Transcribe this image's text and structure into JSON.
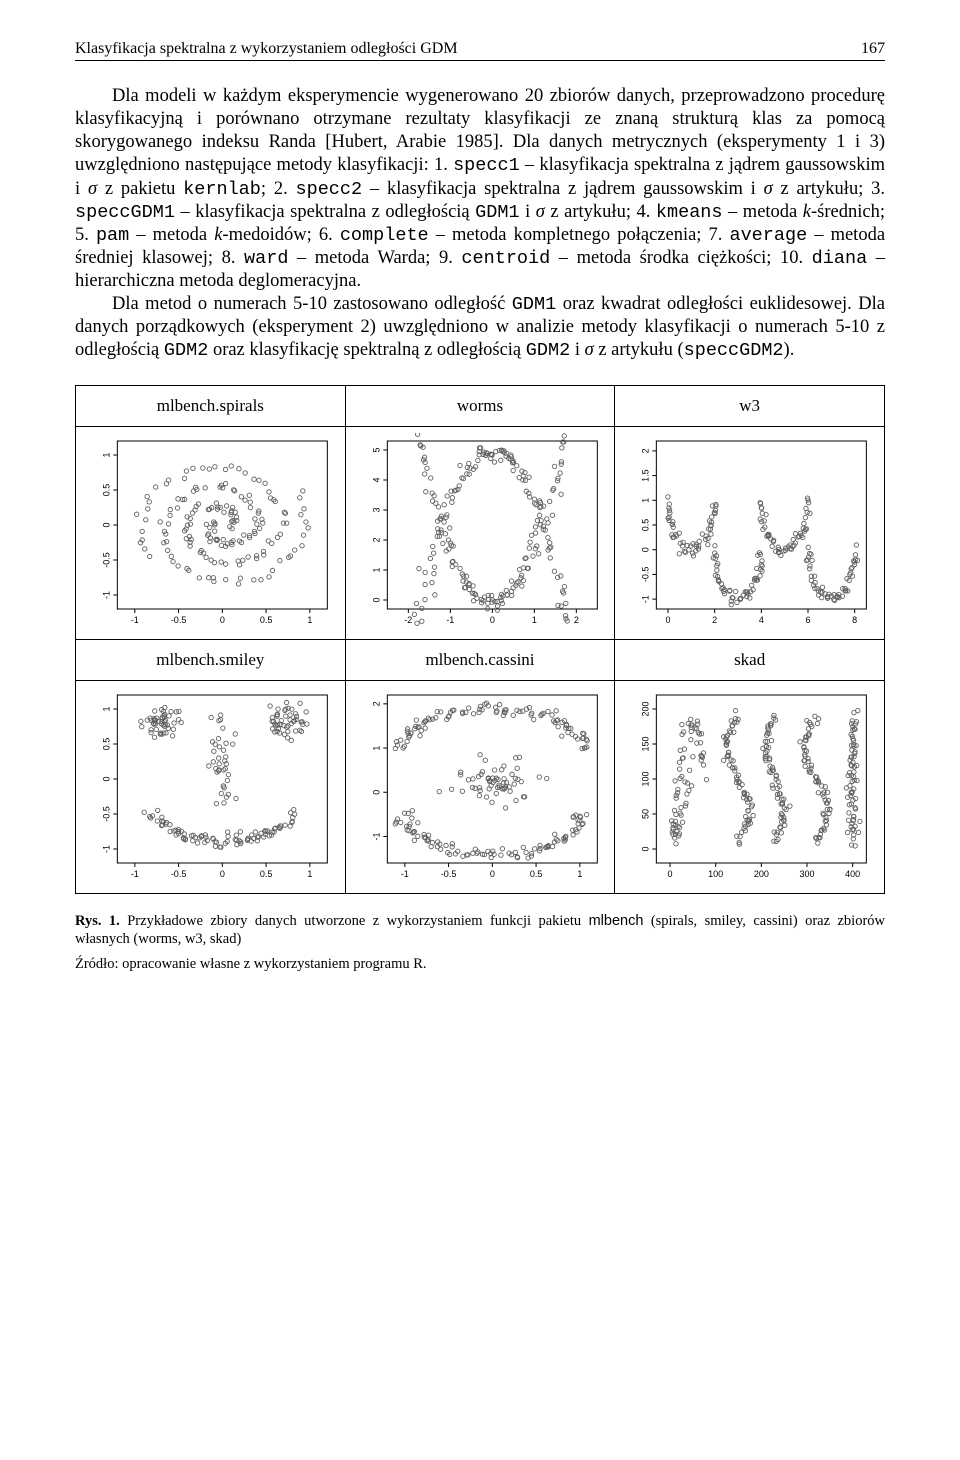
{
  "header": {
    "running_title": "Klasyfikacja spektralna z wykorzystaniem odległości GDM",
    "page_number": "167"
  },
  "paragraphs": {
    "p1a": "Dla modeli w każdym eksperymencie wygenerowano 20 zbiorów danych, przeprowadzono procedurę klasyfikacyjną i porównano otrzymane rezultaty klasyfikacji ze znaną strukturą klas za pomocą skorygowanego indeksu Randa [Hubert, Arabie 1985]. Dla danych metrycznych (eksperymenty 1 i 3) uwzględniono następujące metody klasyfikacji: 1. ",
    "specc1": "specc1",
    "p1b": " – klasyfikacja spektralna z jądrem gaussowskim i ",
    "sigma1": "σ",
    "p1c": " z pakietu ",
    "kernlab": "kernlab",
    "p1d": "; 2. ",
    "specc2": "specc2",
    "p1e": " – klasyfikacja spektralna z jądrem gaussowskim i ",
    "sigma2": "σ",
    "p1f": " z artykułu; 3. ",
    "speccGDM1": "speccGDM1",
    "p1g": " – klasyfikacja spektralna z odległością ",
    "GDM1a": "GDM1",
    "p1h": " i ",
    "sigma3": "σ",
    "p1i": " z artykułu; 4. ",
    "kmeans": "kmeans",
    "p1j": " – metoda ",
    "kital": "k",
    "p1k": "-średnich; 5. ",
    "pam": "pam",
    "p1l": " – metoda ",
    "kital2": "k",
    "p1m": "-medoidów; 6. ",
    "complete": "complete",
    "p1n": " – metoda kompletnego połączenia; 7. ",
    "average": "average",
    "p1o": " – metoda średniej klasowej; 8. ",
    "ward": "ward",
    "p1p": " – metoda Warda; 9. ",
    "centroid": "centroid",
    "p1q": " – metoda środka ciężkości; 10. ",
    "diana": "diana",
    "p1r": " – hierarchiczna metoda deglomeracyjna.",
    "p2a": "Dla metod o numerach 5-10 zastosowano odległość ",
    "GDM1b": "GDM1",
    "p2b": " oraz kwadrat odległości euklidesowej. Dla danych porządkowych (eksperyment 2) uwzględniono w analizie metody klasyfikacji o numerach 5-10 z odległością ",
    "GDM2a": "GDM2",
    "p2c": " oraz klasyfikację spektralną z odległością ",
    "GDM2b": "GDM2",
    "p2d": " i ",
    "sigma4": "σ",
    "p2e": " z artykułu (",
    "speccGDM2": "speccGDM2",
    "p2f": ")."
  },
  "figure": {
    "panels_row1": [
      "mlbench.spirals",
      "worms",
      "w3"
    ],
    "panels_row2": [
      "mlbench.smiley",
      "mlbench.cassini",
      "skad"
    ],
    "plot_style": {
      "point_color": "#808080",
      "point_stroke": "#606060",
      "point_radius": 2.2,
      "box_stroke": "#000000",
      "background": "#ffffff",
      "tick_color": "#000000"
    },
    "spirals": {
      "type": "scatter",
      "xlim": [
        -1.2,
        1.2
      ],
      "ylim": [
        -1.2,
        1.2
      ],
      "xticks": [
        -1.0,
        -0.5,
        0.0,
        0.5,
        1.0
      ],
      "yticks": [
        -1.0,
        -0.5,
        0.0,
        0.5,
        1.0
      ]
    },
    "worms": {
      "type": "scatter",
      "xlim": [
        -2.5,
        2.5
      ],
      "ylim": [
        -0.3,
        5.3
      ],
      "xticks": [
        -2,
        -1,
        0,
        1,
        2
      ],
      "yticks": [
        0,
        1,
        2,
        3,
        4,
        5
      ]
    },
    "w3": {
      "type": "scatter",
      "xlim": [
        -0.5,
        8.5
      ],
      "ylim": [
        -1.2,
        2.2
      ],
      "xticks": [
        0,
        2,
        4,
        6,
        8
      ],
      "yticks": [
        -1.0,
        -0.5,
        0.0,
        0.5,
        1.0,
        1.5,
        2.0
      ]
    },
    "smiley": {
      "type": "scatter",
      "xlim": [
        -1.2,
        1.2
      ],
      "ylim": [
        -1.2,
        1.2
      ],
      "xticks": [
        -1.0,
        -0.5,
        0.0,
        0.5,
        1.0
      ],
      "yticks": [
        -1.0,
        -0.5,
        0.0,
        0.5,
        1.0
      ]
    },
    "cassini": {
      "type": "scatter",
      "xlim": [
        -1.2,
        1.2
      ],
      "ylim": [
        -1.6,
        2.2
      ],
      "xticks": [
        -1.0,
        -0.5,
        0.0,
        0.5,
        1.0
      ],
      "yticks": [
        -1,
        0,
        1,
        2
      ]
    },
    "skad": {
      "type": "scatter",
      "xlim": [
        -30,
        430
      ],
      "ylim": [
        -20,
        220
      ],
      "xticks": [
        0,
        100,
        200,
        300,
        400
      ],
      "yticks": [
        0,
        50,
        100,
        150,
        200
      ]
    }
  },
  "caption": {
    "lead": "Rys. 1.",
    "text": " Przykładowe zbiory danych utworzone z wykorzystaniem funkcji pakietu ",
    "mlbench": "mlbench",
    "text2": " (spirals, smiley, cassini) oraz zbiorów własnych (worms, w3, skad)"
  },
  "source": "Źródło: opracowanie własne z wykorzystaniem programu R."
}
